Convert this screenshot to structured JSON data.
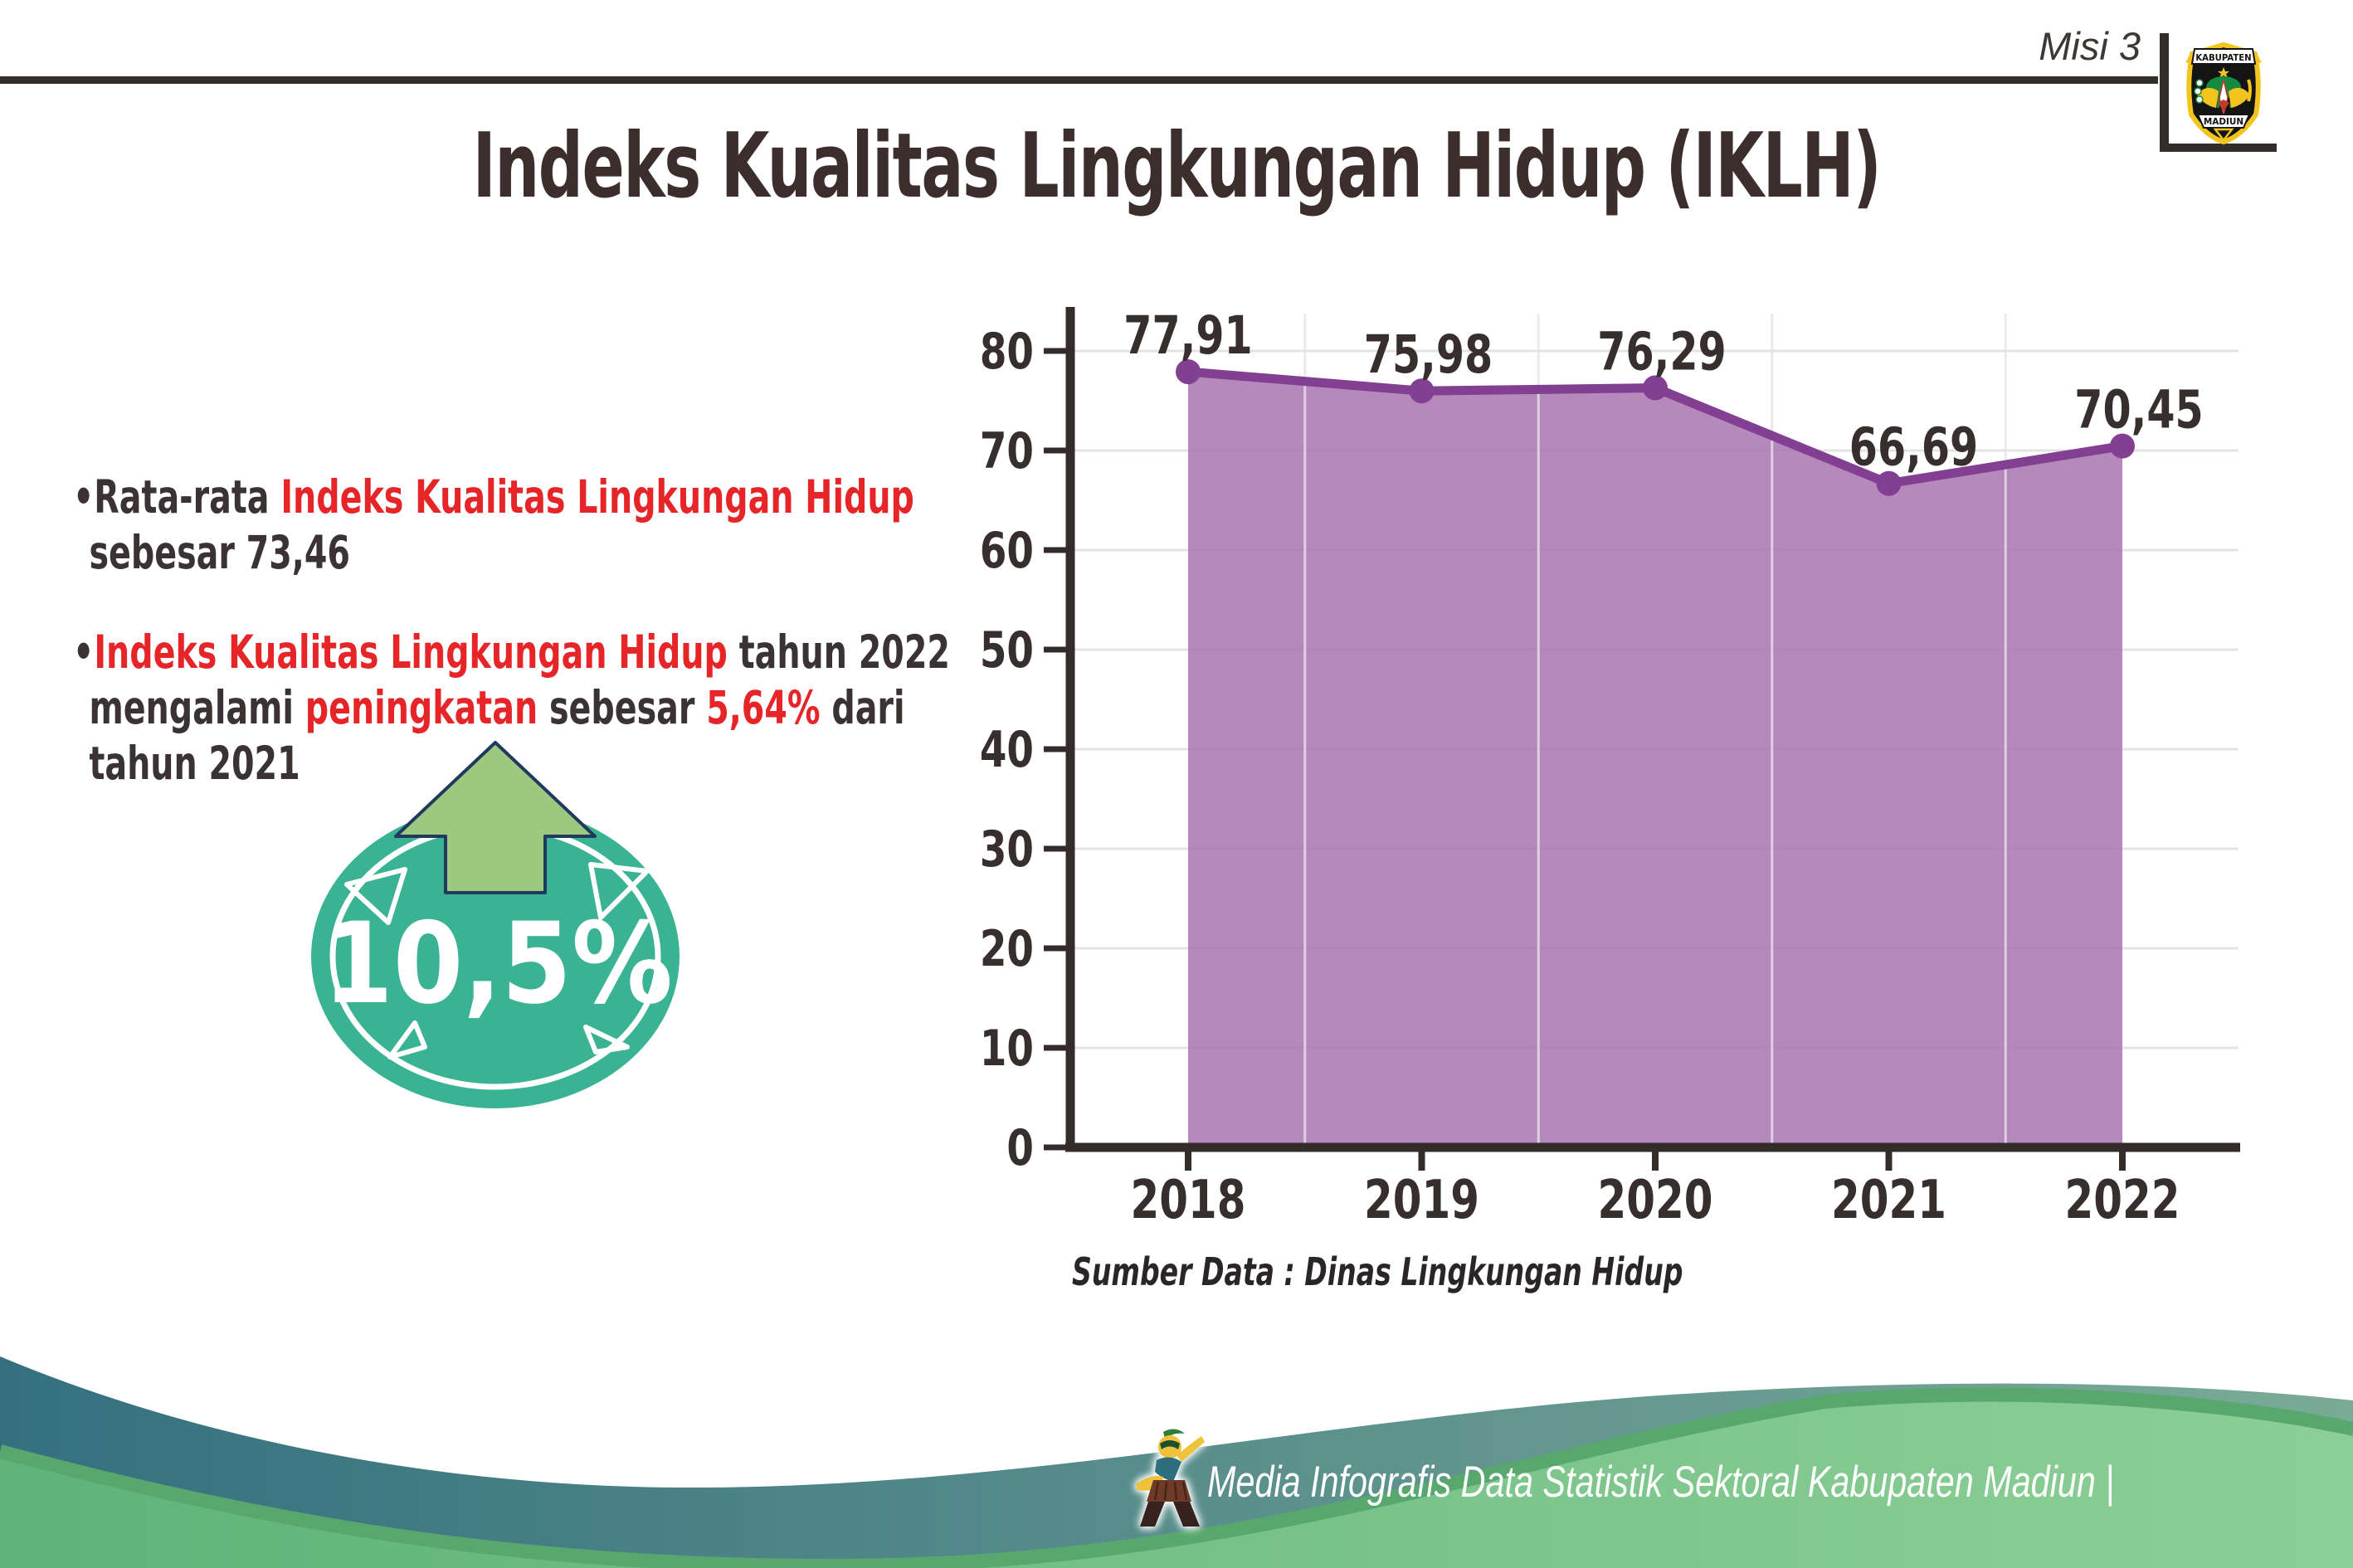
{
  "header": {
    "misi_label": "Misi 3",
    "title": "Indeks Kualitas Lingkungan Hidup (IKLH)",
    "logo_top": "KABUPATEN",
    "logo_bottom": "MADIUN"
  },
  "bullets": [
    {
      "lines": [
        [
          {
            "t": "•Rata-rata ",
            "c": "dark"
          },
          {
            "t": "Indeks Kualitas Lingkungan Hidup",
            "c": "red"
          }
        ],
        [
          {
            "t": "sebesar 73,46",
            "c": "dark"
          }
        ]
      ]
    },
    {
      "lines": [
        [
          {
            "t": "•",
            "c": "dark"
          },
          {
            "t": "Indeks Kualitas Lingkungan Hidup",
            "c": "red"
          },
          {
            "t": " tahun 2022",
            "c": "dark"
          }
        ],
        [
          {
            "t": "mengalami ",
            "c": "dark"
          },
          {
            "t": "peningkatan",
            "c": "red"
          },
          {
            "t": " sebesar ",
            "c": "dark"
          },
          {
            "t": "5,64%",
            "c": "red"
          },
          {
            "t": " dari",
            "c": "dark"
          }
        ],
        [
          {
            "t": "tahun 2021",
            "c": "dark"
          }
        ]
      ]
    }
  ],
  "badge": {
    "value": "10,5%",
    "direction": "up"
  },
  "chart_data": {
    "type": "area",
    "categories": [
      "2018",
      "2019",
      "2020",
      "2021",
      "2022"
    ],
    "values": [
      77.91,
      75.98,
      76.29,
      66.69,
      70.45
    ],
    "value_labels": [
      "77,91",
      "75,98",
      "76,29",
      "66,69",
      "70,45"
    ],
    "title": "",
    "xlabel": "",
    "ylabel": "",
    "ylim": [
      0,
      80
    ],
    "ytick_step": 10,
    "grid": true,
    "legend": false,
    "source_note": "Sumber Data : Dinas Lingkungan Hidup",
    "fill_color": "#a874b0",
    "fill_opacity": 0.85,
    "line_color": "#833f91",
    "marker_color": "#833f91",
    "grid_color": "#e5e2e3",
    "axis_color": "#332c2b",
    "label_color": "#362f2e"
  },
  "footer": {
    "credit": "Media Infografis Data Statistik Sektoral Kabupaten Madiun |"
  },
  "colors": {
    "accent_red": "#e52528",
    "dark_text": "#3a3233",
    "title_color": "#3b2e2c",
    "badge_teal": "#3ab394",
    "arrow_green": "#9cc87f",
    "arrow_outline": "#22395e",
    "footer_teal_dark": "#35707f",
    "footer_teal_light": "#7bab97",
    "footer_green_dark": "#5fb37a",
    "footer_green_light": "#8ccf96",
    "footer_edge_green": "#57a76e"
  }
}
